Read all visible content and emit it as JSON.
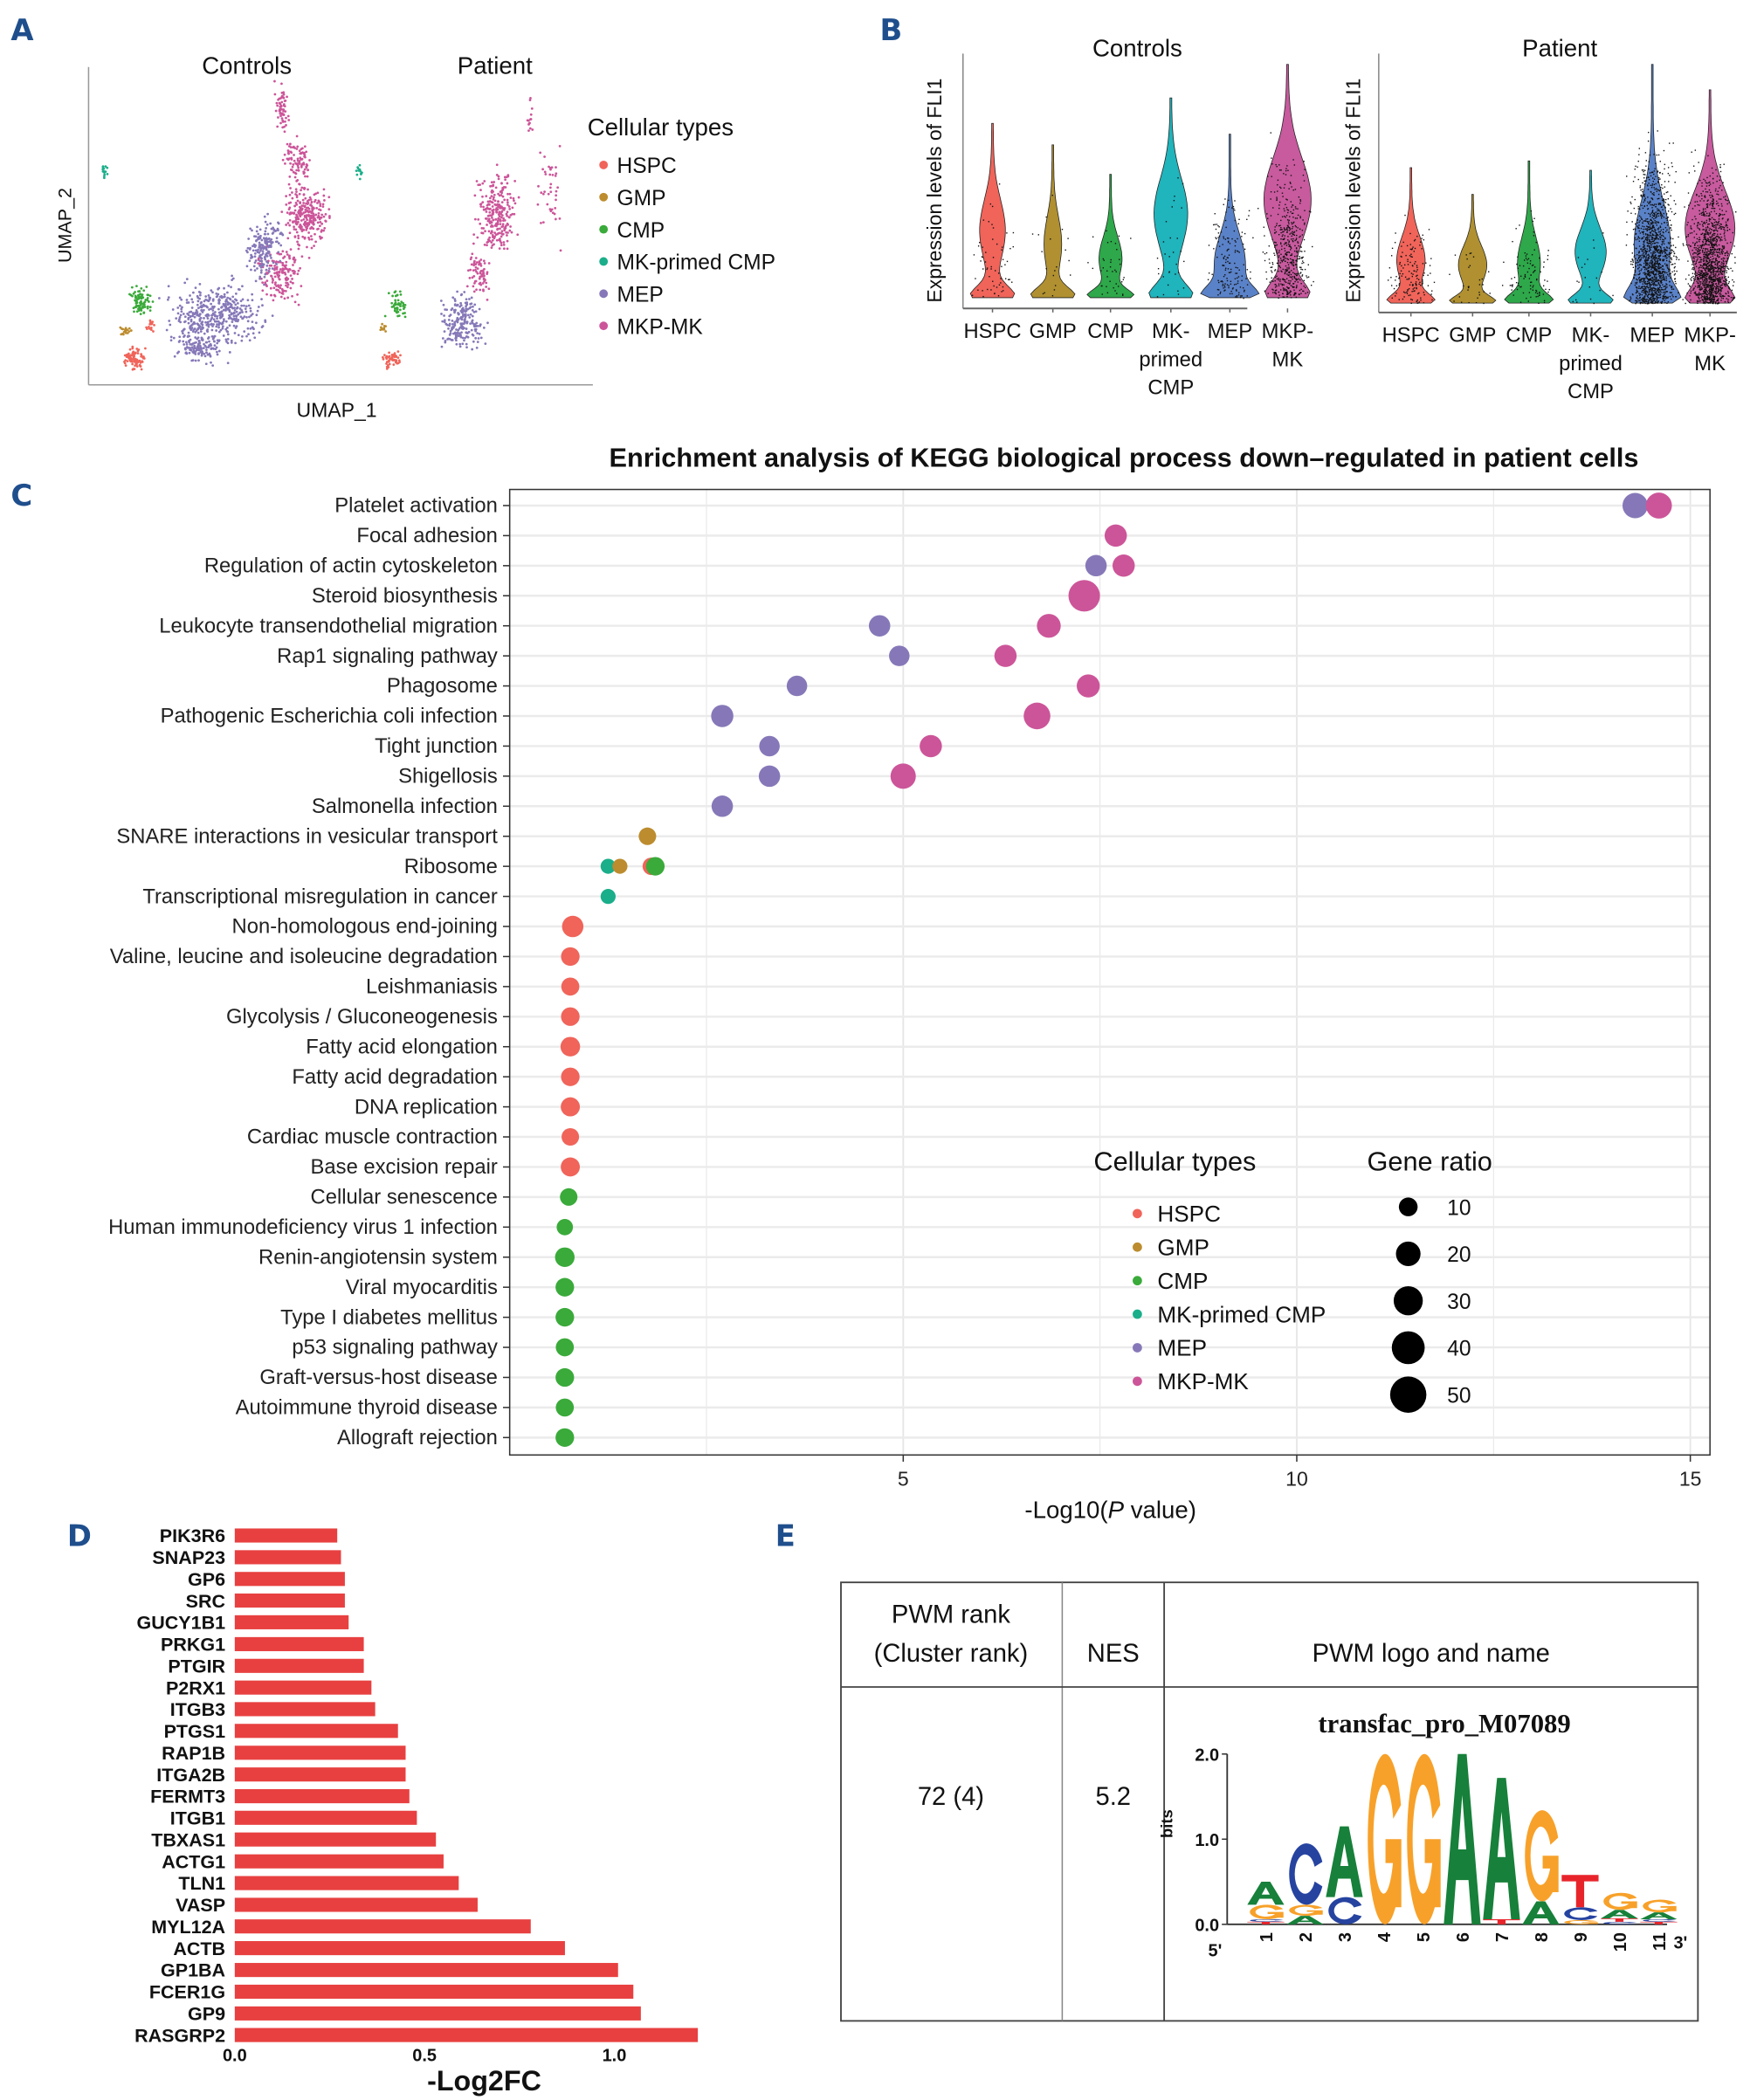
{
  "panels": {
    "a": "A",
    "b": "B",
    "c": "C",
    "d": "D",
    "e": "E"
  },
  "colors": {
    "panel_label": "#1f4e8c",
    "bar": "#e84040",
    "logo": {
      "A": "#17803a",
      "C": "#2643a0",
      "G": "#f7a12a",
      "T": "#e8242b"
    }
  },
  "cell_types": [
    {
      "name": "HSPC",
      "color": "#f0645a"
    },
    {
      "name": "GMP",
      "color": "#bc8c2e"
    },
    {
      "name": "CMP",
      "color": "#3aaa3a"
    },
    {
      "name": "MK-primed CMP",
      "color": "#1aae8a"
    },
    {
      "name": "MEP",
      "color": "#8678b8"
    },
    {
      "name": "MKP-MK",
      "color": "#cc5599"
    }
  ],
  "chart_data": [
    {
      "id": "umap",
      "type": "scatter",
      "titles": [
        "Controls",
        "Patient"
      ],
      "xlabel": "UMAP_1",
      "ylabel": "UMAP_2",
      "legend_title": "Cellular types",
      "legend_placement": "right"
    },
    {
      "id": "violin",
      "type": "violin",
      "titles": [
        "Controls",
        "Patient"
      ],
      "ylabel": "Expression levels of FLI1",
      "categories": [
        [
          "HSPC"
        ],
        [
          "GMP"
        ],
        [
          "CMP"
        ],
        [
          "MK-",
          "primed",
          "CMP"
        ],
        [
          "MEP"
        ],
        [
          "MKP-",
          "MK"
        ]
      ],
      "violin_colors": [
        "#f0645a",
        "#b09030",
        "#2ea84a",
        "#20b4bc",
        "#5a82c8",
        "#c85a9e"
      ]
    },
    {
      "id": "enrichment",
      "type": "scatter",
      "title": "Enrichment analysis of KEGG biological process down–regulated in patient cells",
      "xlabel_prefix": "-Log10(",
      "xlabel_italic": "P",
      "xlabel_suffix": " value)",
      "xlim": [
        0,
        15.25
      ],
      "xticks": [
        5,
        10,
        15
      ],
      "grid": true,
      "legend_title": "Cellular types",
      "size_legend_title": "Gene ratio",
      "size_legend": [
        10,
        20,
        30,
        40,
        50
      ],
      "legend_placement": "bottom-right",
      "pathways": [
        "Platelet activation",
        "Focal adhesion",
        "Regulation of actin cytoskeleton",
        "Steroid biosynthesis",
        "Leukocyte transendothelial migration",
        "Rap1 signaling pathway",
        "Phagosome",
        "Pathogenic Escherichia coli infection",
        "Tight junction",
        "Shigellosis",
        "Salmonella infection",
        "SNARE interactions in vesicular transport",
        "Ribosome",
        "Transcriptional misregulation in cancer",
        "Non-homologous end-joining",
        "Valine, leucine and isoleucine degradation",
        "Leishmaniasis",
        "Glycolysis / Gluconeogenesis",
        "Fatty acid elongation",
        "Fatty acid degradation",
        "DNA replication",
        "Cardiac muscle contraction",
        "Base excision repair",
        "Cellular senescence",
        "Human immunodeficiency virus 1 infection",
        "Renin-angiotensin system",
        "Viral myocarditis",
        "Type I diabetes mellitus",
        "p53 signaling pathway",
        "Graft-versus-host disease",
        "Autoimmune thyroid disease",
        "Allograft rejection"
      ],
      "points": [
        {
          "pathway": "Platelet activation",
          "cell": "MEP",
          "x": 14.3,
          "gene_ratio": 30
        },
        {
          "pathway": "Platelet activation",
          "cell": "MKP-MK",
          "x": 14.6,
          "gene_ratio": 32
        },
        {
          "pathway": "Focal adhesion",
          "cell": "MKP-MK",
          "x": 7.7,
          "gene_ratio": 22
        },
        {
          "pathway": "Regulation of actin cytoskeleton",
          "cell": "MEP",
          "x": 7.45,
          "gene_ratio": 20
        },
        {
          "pathway": "Regulation of actin cytoskeleton",
          "cell": "MKP-MK",
          "x": 7.8,
          "gene_ratio": 22
        },
        {
          "pathway": "Steroid biosynthesis",
          "cell": "MKP-MK",
          "x": 7.3,
          "gene_ratio": 50
        },
        {
          "pathway": "Leukocyte transendothelial migration",
          "cell": "MEP",
          "x": 4.7,
          "gene_ratio": 20
        },
        {
          "pathway": "Leukocyte transendothelial migration",
          "cell": "MKP-MK",
          "x": 6.85,
          "gene_ratio": 26
        },
        {
          "pathway": "Rap1 signaling pathway",
          "cell": "MEP",
          "x": 4.95,
          "gene_ratio": 18
        },
        {
          "pathway": "Rap1 signaling pathway",
          "cell": "MKP-MK",
          "x": 6.3,
          "gene_ratio": 22
        },
        {
          "pathway": "Phagosome",
          "cell": "MEP",
          "x": 3.65,
          "gene_ratio": 18
        },
        {
          "pathway": "Phagosome",
          "cell": "MKP-MK",
          "x": 7.35,
          "gene_ratio": 24
        },
        {
          "pathway": "Pathogenic Escherichia coli infection",
          "cell": "MEP",
          "x": 2.7,
          "gene_ratio": 22
        },
        {
          "pathway": "Pathogenic Escherichia coli infection",
          "cell": "MKP-MK",
          "x": 6.7,
          "gene_ratio": 34
        },
        {
          "pathway": "Tight junction",
          "cell": "MEP",
          "x": 3.3,
          "gene_ratio": 18
        },
        {
          "pathway": "Tight junction",
          "cell": "MKP-MK",
          "x": 5.35,
          "gene_ratio": 22
        },
        {
          "pathway": "Shigellosis",
          "cell": "MEP",
          "x": 3.3,
          "gene_ratio": 20
        },
        {
          "pathway": "Shigellosis",
          "cell": "MKP-MK",
          "x": 5.0,
          "gene_ratio": 30
        },
        {
          "pathway": "Salmonella infection",
          "cell": "MEP",
          "x": 2.7,
          "gene_ratio": 20
        },
        {
          "pathway": "SNARE interactions in vesicular transport",
          "cell": "GMP",
          "x": 1.75,
          "gene_ratio": 12
        },
        {
          "pathway": "Ribosome",
          "cell": "HSPC",
          "x": 1.8,
          "gene_ratio": 12
        },
        {
          "pathway": "Ribosome",
          "cell": "CMP",
          "x": 1.85,
          "gene_ratio": 14
        },
        {
          "pathway": "Ribosome",
          "cell": "MK-primed CMP",
          "x": 1.25,
          "gene_ratio": 8
        },
        {
          "pathway": "Ribosome",
          "cell": "GMP",
          "x": 1.4,
          "gene_ratio": 8
        },
        {
          "pathway": "Transcriptional misregulation in cancer",
          "cell": "MK-primed CMP",
          "x": 1.25,
          "gene_ratio": 8
        },
        {
          "pathway": "Non-homologous end-joining",
          "cell": "HSPC",
          "x": 0.8,
          "gene_ratio": 20
        },
        {
          "pathway": "Valine, leucine and isoleucine degradation",
          "cell": "HSPC",
          "x": 0.77,
          "gene_ratio": 14
        },
        {
          "pathway": "Leishmaniasis",
          "cell": "HSPC",
          "x": 0.77,
          "gene_ratio": 13
        },
        {
          "pathway": "Glycolysis / Gluconeogenesis",
          "cell": "HSPC",
          "x": 0.77,
          "gene_ratio": 14
        },
        {
          "pathway": "Fatty acid elongation",
          "cell": "HSPC",
          "x": 0.77,
          "gene_ratio": 16
        },
        {
          "pathway": "Fatty acid degradation",
          "cell": "HSPC",
          "x": 0.77,
          "gene_ratio": 14
        },
        {
          "pathway": "DNA replication",
          "cell": "HSPC",
          "x": 0.77,
          "gene_ratio": 15
        },
        {
          "pathway": "Cardiac muscle contraction",
          "cell": "HSPC",
          "x": 0.77,
          "gene_ratio": 12
        },
        {
          "pathway": "Base excision repair",
          "cell": "HSPC",
          "x": 0.77,
          "gene_ratio": 15
        },
        {
          "pathway": "Cellular senescence",
          "cell": "CMP",
          "x": 0.75,
          "gene_ratio": 12
        },
        {
          "pathway": "Human immunodeficiency virus 1 infection",
          "cell": "CMP",
          "x": 0.7,
          "gene_ratio": 10
        },
        {
          "pathway": "Renin-angiotensin system",
          "cell": "CMP",
          "x": 0.7,
          "gene_ratio": 16
        },
        {
          "pathway": "Viral myocarditis",
          "cell": "CMP",
          "x": 0.7,
          "gene_ratio": 14
        },
        {
          "pathway": "Type I diabetes mellitus",
          "cell": "CMP",
          "x": 0.7,
          "gene_ratio": 14
        },
        {
          "pathway": "p53 signaling pathway",
          "cell": "CMP",
          "x": 0.7,
          "gene_ratio": 13
        },
        {
          "pathway": "Graft-versus-host disease",
          "cell": "CMP",
          "x": 0.7,
          "gene_ratio": 14
        },
        {
          "pathway": "Autoimmune thyroid disease",
          "cell": "CMP",
          "x": 0.7,
          "gene_ratio": 13
        },
        {
          "pathway": "Allograft rejection",
          "cell": "CMP",
          "x": 0.7,
          "gene_ratio": 14
        }
      ]
    },
    {
      "id": "bars",
      "type": "bar",
      "orientation": "horizontal",
      "xlabel": "-Log2FC",
      "xlim": [
        0,
        1.3
      ],
      "xticks": [
        0.0,
        0.5,
        1.0
      ],
      "xtick_labels": [
        "0.0",
        "0.5",
        "1.0"
      ],
      "categories": [
        "PIK3R6",
        "SNAP23",
        "GP6",
        "SRC",
        "GUCY1B1",
        "PRKG1",
        "PTGIR",
        "P2RX1",
        "ITGB3",
        "PTGS1",
        "RAP1B",
        "ITGA2B",
        "FERMT3",
        "ITGB1",
        "TBXAS1",
        "ACTG1",
        "TLN1",
        "VASP",
        "MYL12A",
        "ACTB",
        "GP1BA",
        "FCER1G",
        "GP9",
        "RASGRP2"
      ],
      "values": [
        0.27,
        0.28,
        0.29,
        0.29,
        0.3,
        0.34,
        0.34,
        0.36,
        0.37,
        0.43,
        0.45,
        0.45,
        0.46,
        0.48,
        0.53,
        0.55,
        0.59,
        0.64,
        0.78,
        0.87,
        1.01,
        1.05,
        1.07,
        1.22
      ]
    },
    {
      "id": "motif_table",
      "type": "table",
      "headers": [
        [
          "PWM rank",
          "(Cluster rank)"
        ],
        [
          "NES"
        ],
        [
          "PWM logo and name"
        ]
      ],
      "row": {
        "rank": "72 (4)",
        "nes": "5.2",
        "motif": "transfac_pro_M07089"
      },
      "logo": {
        "ylabel": "bits",
        "ylim": [
          0,
          2
        ],
        "yticks": [
          "0.0",
          "1.0",
          "2.0"
        ],
        "end_left": "5'",
        "end_right": "3'",
        "positions": [
          {
            "pos": "1",
            "letters": [
              [
                "T",
                0.03
              ],
              [
                "C",
                0.03
              ],
              [
                "G",
                0.17
              ],
              [
                "A",
                0.27
              ]
            ]
          },
          {
            "pos": "2",
            "letters": [
              [
                "A",
                0.1
              ],
              [
                "G",
                0.13
              ],
              [
                "C",
                0.72
              ]
            ]
          },
          {
            "pos": "3",
            "letters": [
              [
                "C",
                0.32
              ],
              [
                "A",
                0.83
              ]
            ]
          },
          {
            "pos": "4",
            "letters": [
              [
                "G",
                2.0
              ]
            ]
          },
          {
            "pos": "5",
            "letters": [
              [
                "G",
                2.0
              ]
            ]
          },
          {
            "pos": "6",
            "letters": [
              [
                "A",
                2.0
              ]
            ]
          },
          {
            "pos": "7",
            "letters": [
              [
                "T",
                0.06
              ],
              [
                "A",
                1.66
              ]
            ]
          },
          {
            "pos": "8",
            "letters": [
              [
                "A",
                0.27
              ],
              [
                "G",
                1.07
              ]
            ]
          },
          {
            "pos": "9",
            "letters": [
              [
                "G",
                0.05
              ],
              [
                "C",
                0.15
              ],
              [
                "T",
                0.38
              ]
            ]
          },
          {
            "pos": "10",
            "letters": [
              [
                "C",
                0.03
              ],
              [
                "T",
                0.04
              ],
              [
                "A",
                0.1
              ],
              [
                "G",
                0.2
              ]
            ]
          },
          {
            "pos": "11",
            "letters": [
              [
                "T",
                0.03
              ],
              [
                "C",
                0.03
              ],
              [
                "A",
                0.08
              ],
              [
                "G",
                0.15
              ]
            ]
          }
        ]
      }
    }
  ]
}
